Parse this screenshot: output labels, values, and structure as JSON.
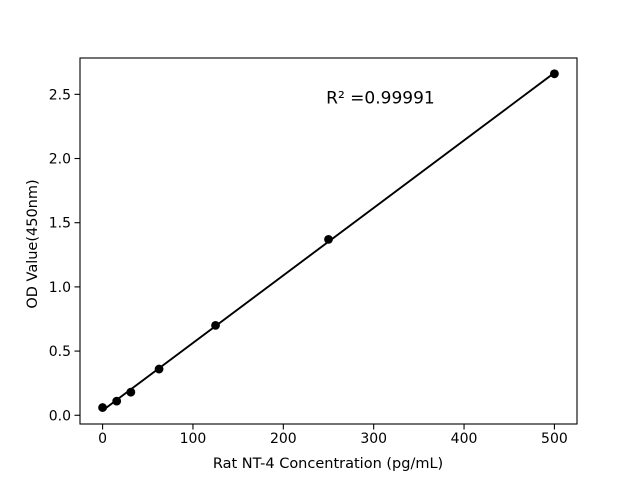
{
  "figure": {
    "background": "#ffffff",
    "foreground": "#000000"
  },
  "chart_data": {
    "type": "scatter",
    "title": "",
    "xlabel": "Rat NT-4 Concentration (pg/mL)",
    "ylabel": "OD Value(450nm)",
    "x": [
      0,
      15.6,
      31.25,
      62.5,
      125,
      250,
      500
    ],
    "y": [
      0.06,
      0.11,
      0.18,
      0.36,
      0.7,
      1.37,
      2.66
    ],
    "fit_line": {
      "type": "linear_regression",
      "drawn_over_x": [
        0,
        500
      ]
    },
    "annotation": {
      "text": "R² =0.99991",
      "x": 307.5,
      "y": 2.43
    },
    "xlim": [
      -25,
      525
    ],
    "ylim": [
      -0.068,
      2.783
    ],
    "xticks": [
      0,
      100,
      200,
      300,
      400,
      500
    ],
    "xtick_labels": [
      "0",
      "100",
      "200",
      "300",
      "400",
      "500"
    ],
    "yticks": [
      0.0,
      0.5,
      1.0,
      1.5,
      2.0,
      2.5
    ],
    "ytick_labels": [
      "0.0",
      "0.5",
      "1.0",
      "1.5",
      "2.0",
      "2.5"
    ],
    "grid": false,
    "legend": null,
    "marker_color": "#000000",
    "line_color": "#000000",
    "axis_color": "#000000"
  }
}
